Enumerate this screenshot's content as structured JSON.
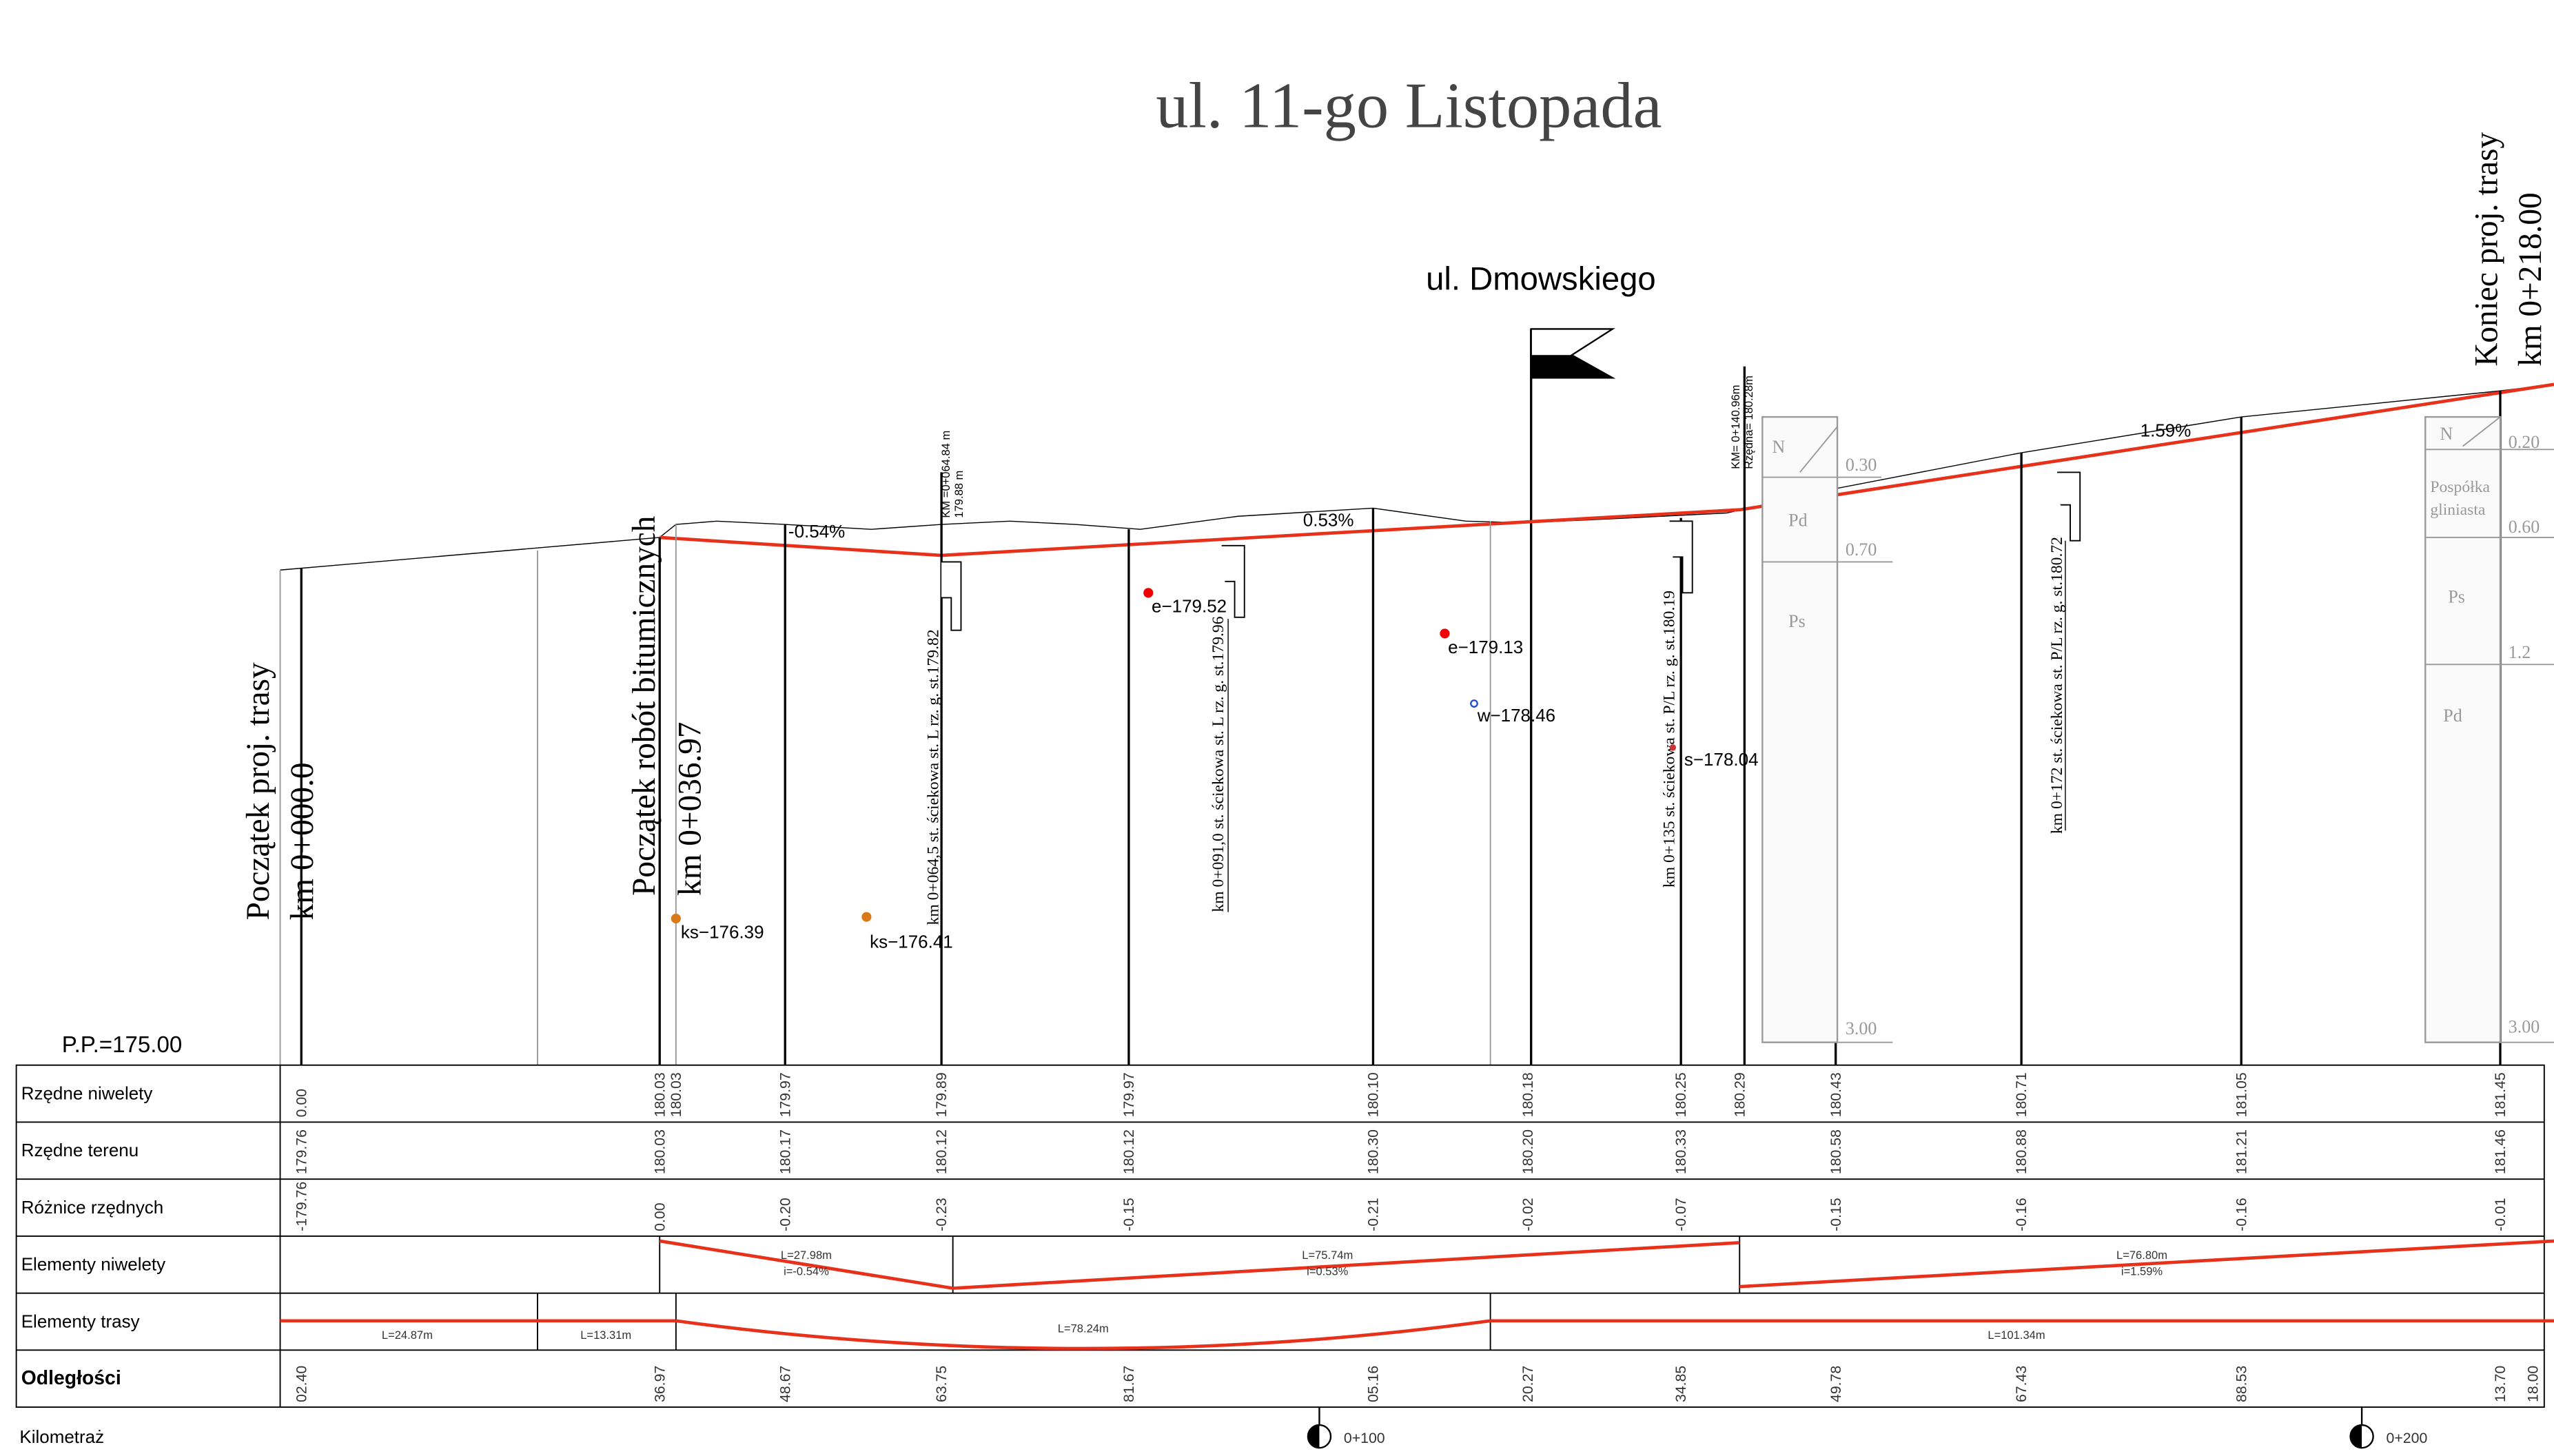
{
  "title": "ul. 11-go Listopada",
  "street": "ul. Dmowskiego",
  "start": {
    "line1": "Początek proj. trasy",
    "line2": "km 0+000.0"
  },
  "bitum": {
    "line1": "Początek robót bitumicznych",
    "line2": "km 0+036.97"
  },
  "end": {
    "line1": "Koniec proj. trasy",
    "line2": "km 0+218.00"
  },
  "datum": "P.P.=175.00",
  "grades": [
    "-0.54%",
    "0.53%",
    "1.59%"
  ],
  "points": [
    "ks−176.39",
    "ks−176.41",
    "e−179.52",
    "e−179.13",
    "w−178.46",
    "s−178.04"
  ],
  "wells": [
    "km 0+064,5 st. ściekowa st. L rz. g. st.179.82",
    "km 0+091,0 st. ściekowa st. L rz. g. st.179.96",
    "km 0+135 st. ściekowa st. P/L rz. g. st.180.19",
    "km 0+172 st. ściekowa st. P/L rz. g. st.180.72"
  ],
  "markers": [
    [
      "KM =0+064.84 m",
      "179.88 m"
    ],
    [
      "KM= 0+140.96m",
      "Rzędna= 180.28m"
    ]
  ],
  "soil1": {
    "layers": [
      "N",
      "Pd",
      "Ps"
    ],
    "depths": [
      "0.30",
      "0.70",
      "3.00"
    ]
  },
  "soil2": {
    "layers": [
      "N",
      "Pospółka",
      "gliniasta",
      "Ps",
      "Pd"
    ],
    "depths": [
      "0.20",
      "0.60",
      "1.2",
      "3.00"
    ]
  },
  "table": {
    "headers": [
      "Rzędne niwelety",
      "Rzędne terenu",
      "Różnice rzędnych",
      "Elementy niwelety",
      "Elementy trasy",
      "Odległości"
    ],
    "niwelety": [
      "0.00",
      "180.03",
      "180.03",
      "179.97",
      "179.89",
      "179.97",
      "180.10",
      "180.18",
      "180.25",
      "180.29",
      "180.43",
      "180.71",
      "181.05",
      "181.45",
      null
    ],
    "teren": [
      "179.76",
      "180.03",
      null,
      "180.17",
      "180.12",
      "180.12",
      "180.30",
      "180.20",
      "180.33",
      null,
      "180.58",
      "180.88",
      "181.21",
      "181.46",
      null
    ],
    "roznice": [
      "-179.76",
      "0.00",
      null,
      "-0.20",
      "-0.23",
      "-0.15",
      "-0.21",
      "-0.02",
      "-0.07",
      null,
      "-0.15",
      "-0.16",
      "-0.16",
      "-0.01",
      null
    ],
    "odleglosci": [
      "02.40",
      "36.97",
      null,
      "48.67",
      "63.75",
      "81.67",
      "05.16",
      "20.27",
      "34.85",
      null,
      "49.78",
      "67.43",
      "88.53",
      "13.70",
      "18.00"
    ],
    "niw_elements": [
      [
        "L=27.98m",
        "i=-0.54%"
      ],
      [
        "L=75.74m",
        "i=0.53%"
      ],
      [
        "L=76.80m",
        "i=1.59%"
      ]
    ],
    "trasa_elements": [
      "L=24.87m",
      "L=13.31m",
      "L=78.24m",
      "L=101.34m"
    ]
  },
  "kilometraz": {
    "label": "Kilometraż",
    "marks": [
      "0+100",
      "0+200"
    ]
  }
}
